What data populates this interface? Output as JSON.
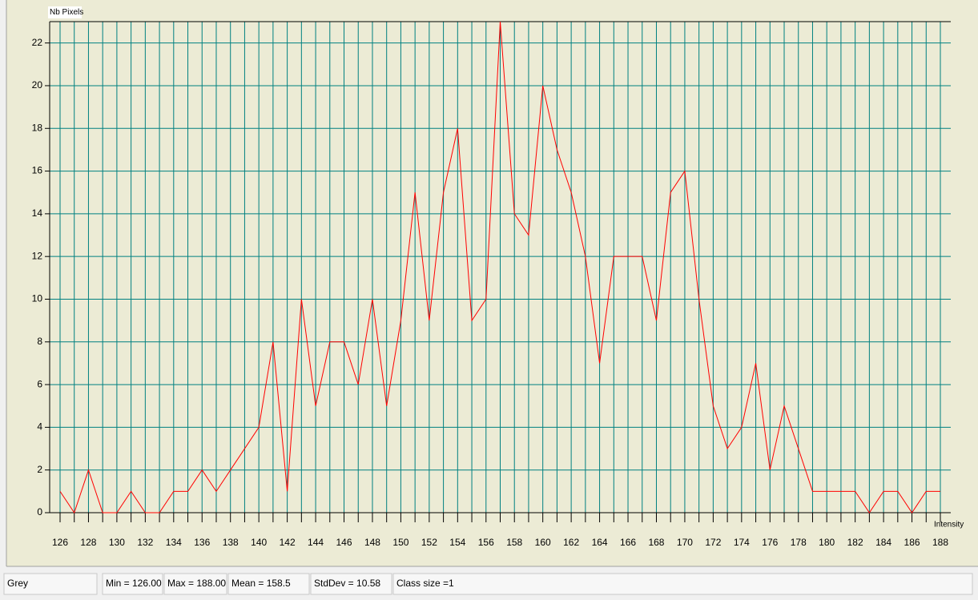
{
  "chart_data": {
    "type": "line",
    "y_label": "Nb Pixels",
    "x_label": "Intensity",
    "x": [
      126,
      127,
      128,
      129,
      130,
      131,
      132,
      133,
      134,
      135,
      136,
      137,
      138,
      139,
      140,
      141,
      142,
      143,
      144,
      145,
      146,
      147,
      148,
      149,
      150,
      151,
      152,
      153,
      154,
      155,
      156,
      157,
      158,
      159,
      160,
      161,
      162,
      163,
      164,
      165,
      166,
      167,
      168,
      169,
      170,
      171,
      172,
      173,
      174,
      175,
      176,
      177,
      178,
      179,
      180,
      181,
      182,
      183,
      184,
      185,
      186,
      187,
      188
    ],
    "series": [
      {
        "name": "Grey",
        "color": "#ff0000",
        "values": [
          1,
          0,
          2,
          0,
          0,
          1,
          0,
          0,
          1,
          1,
          2,
          1,
          2,
          3,
          4,
          8,
          1,
          10,
          5,
          8,
          8,
          6,
          10,
          5,
          9,
          15,
          9,
          15,
          18,
          9,
          10,
          23,
          14,
          13,
          20,
          17,
          15,
          12,
          7,
          12,
          12,
          12,
          9,
          15,
          16,
          10,
          5,
          3,
          4,
          7,
          2,
          5,
          3,
          1,
          1,
          1,
          1,
          0,
          1,
          1,
          0,
          1,
          1
        ]
      }
    ],
    "xlim": [
      126,
      188
    ],
    "ylim": [
      0,
      23
    ],
    "xticks": [
      126,
      128,
      130,
      132,
      134,
      136,
      138,
      140,
      142,
      144,
      146,
      148,
      150,
      152,
      154,
      156,
      158,
      160,
      162,
      164,
      166,
      168,
      170,
      172,
      174,
      176,
      178,
      180,
      182,
      184,
      186,
      188
    ],
    "yticks": [
      0,
      2,
      4,
      6,
      8,
      10,
      12,
      14,
      16,
      18,
      20,
      22
    ],
    "grid": true,
    "grid_color": "#008080",
    "background": "#ecebd5"
  },
  "status_bar": [
    "Grey",
    "Min = 126.00",
    "Max = 188.00",
    "Mean = 158.5",
    "StdDev = 10.58",
    "Class size =1"
  ]
}
